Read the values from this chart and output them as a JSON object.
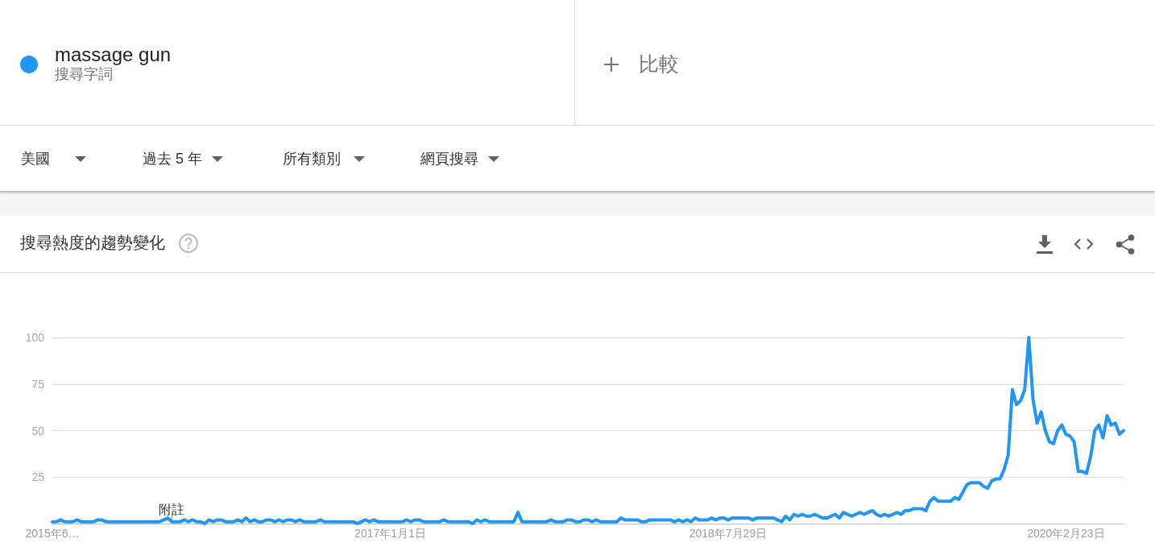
{
  "chart_data": {
    "type": "line",
    "title": "搜尋熱度的趨勢變化",
    "x": [
      "2015-06-07",
      "2015-06-14",
      "2015-06-21",
      "2015-06-28",
      "2015-07-12",
      "2015-07-19",
      "2015-07-26",
      "2015-08-16",
      "2015-08-23",
      "2015-08-30",
      "2015-09-06",
      "2015-12-06",
      "2015-12-13",
      "2015-12-20",
      "2015-12-27",
      "2016-01-10",
      "2016-01-17",
      "2016-01-24",
      "2016-01-31",
      "2016-02-07",
      "2016-02-14",
      "2016-02-21",
      "2016-02-28",
      "2016-03-06",
      "2016-03-13",
      "2016-03-20",
      "2016-03-27",
      "2016-04-10",
      "2016-04-17",
      "2016-04-24",
      "2016-05-01",
      "2016-05-08",
      "2016-05-15",
      "2016-05-22",
      "2016-05-29",
      "2016-06-05",
      "2016-06-12",
      "2016-06-19",
      "2016-06-26",
      "2016-07-03",
      "2016-07-10",
      "2016-07-17",
      "2016-07-24",
      "2016-07-31",
      "2016-08-07",
      "2016-08-28",
      "2016-09-04",
      "2016-09-11",
      "2016-10-30",
      "2016-11-06",
      "2016-11-13",
      "2016-11-20",
      "2016-11-27",
      "2016-12-04",
      "2016-12-11",
      "2017-01-22",
      "2017-01-29",
      "2017-02-05",
      "2017-02-12",
      "2017-02-19",
      "2017-02-26",
      "2017-03-26",
      "2017-04-02",
      "2017-04-09",
      "2017-05-14",
      "2017-05-21",
      "2017-05-28",
      "2017-06-04",
      "2017-06-11",
      "2017-06-18",
      "2017-07-30",
      "2017-08-06",
      "2017-08-13",
      "2017-09-24",
      "2017-10-01",
      "2017-10-08",
      "2017-10-22",
      "2017-10-29",
      "2017-11-05",
      "2017-11-12",
      "2017-11-19",
      "2017-11-26",
      "2017-12-03",
      "2017-12-10",
      "2017-12-17",
      "2017-12-24",
      "2018-01-21",
      "2018-01-28",
      "2018-02-04",
      "2018-02-25",
      "2018-03-04",
      "2018-03-11",
      "2018-03-18",
      "2018-04-22",
      "2018-04-29",
      "2018-05-06",
      "2018-05-13",
      "2018-05-20",
      "2018-05-27",
      "2018-06-03",
      "2018-06-10",
      "2018-06-24",
      "2018-07-01",
      "2018-07-08",
      "2018-07-15",
      "2018-07-22",
      "2018-07-29",
      "2018-08-05",
      "2018-09-02",
      "2018-09-09",
      "2018-09-16",
      "2018-10-14",
      "2018-10-21",
      "2018-10-28",
      "2018-11-04",
      "2018-11-11",
      "2018-11-18",
      "2018-11-25",
      "2018-12-02",
      "2018-12-09",
      "2018-12-16",
      "2018-12-23",
      "2018-12-30",
      "2019-01-06",
      "2019-01-13",
      "2019-01-20",
      "2019-01-27",
      "2019-02-03",
      "2019-02-10",
      "2019-02-17",
      "2019-02-24",
      "2019-03-03",
      "2019-03-10",
      "2019-03-17",
      "2019-03-24",
      "2019-03-31",
      "2019-04-07",
      "2019-04-14",
      "2019-04-21",
      "2019-04-28",
      "2019-05-05",
      "2019-05-12",
      "2019-05-19",
      "2019-05-26",
      "2019-06-02",
      "2019-06-09",
      "2019-06-23",
      "2019-06-30",
      "2019-07-07",
      "2019-07-14",
      "2019-07-21",
      "2019-08-11",
      "2019-08-18",
      "2019-08-25",
      "2019-09-01",
      "2019-09-08",
      "2019-09-15",
      "2019-09-29",
      "2019-10-06",
      "2019-10-13",
      "2019-10-20",
      "2019-10-27",
      "2019-11-03",
      "2019-11-10",
      "2019-11-17",
      "2019-11-24",
      "2019-12-01",
      "2019-12-08",
      "2019-12-15",
      "2019-12-22",
      "2019-12-29",
      "2020-01-05",
      "2020-01-12",
      "2020-01-19",
      "2020-01-26",
      "2020-02-02",
      "2020-02-09",
      "2020-02-16",
      "2020-02-23",
      "2020-03-01",
      "2020-03-08",
      "2020-03-15",
      "2020-03-22",
      "2020-03-29",
      "2020-04-05",
      "2020-04-12",
      "2020-04-19",
      "2020-04-26",
      "2020-05-03",
      "2020-05-10",
      "2020-05-17",
      "2020-05-24",
      "2020-05-31"
    ],
    "series": [
      {
        "name": "massage gun",
        "color": "#2196f3",
        "values": [
          1,
          1,
          2,
          1,
          1,
          2,
          1,
          1,
          2,
          2,
          1,
          1,
          2,
          3,
          1,
          1,
          2,
          1,
          2,
          1,
          1,
          0,
          2,
          1,
          2,
          2,
          1,
          1,
          2,
          1,
          3,
          1,
          2,
          1,
          1,
          2,
          2,
          1,
          2,
          1,
          2,
          2,
          1,
          2,
          1,
          1,
          2,
          1,
          1,
          0,
          1,
          2,
          1,
          2,
          1,
          1,
          2,
          1,
          2,
          2,
          1,
          1,
          2,
          1,
          1,
          0,
          2,
          1,
          2,
          1,
          1,
          6,
          1,
          1,
          2,
          1,
          1,
          2,
          2,
          1,
          1,
          2,
          2,
          1,
          2,
          1,
          1,
          3,
          2,
          2,
          1,
          1,
          2,
          2,
          1,
          2,
          1,
          2,
          1,
          3,
          2,
          2,
          3,
          2,
          3,
          3,
          2,
          3,
          3,
          2,
          3,
          3,
          2,
          1,
          4,
          2,
          5,
          4,
          5,
          4,
          4,
          5,
          4,
          3,
          3,
          4,
          5,
          3,
          6,
          5,
          4,
          5,
          6,
          5,
          6,
          7,
          5,
          4,
          5,
          4,
          5,
          6,
          5,
          7,
          7,
          8,
          8,
          7,
          12,
          14,
          12,
          12,
          14,
          13,
          17,
          21,
          22,
          22,
          20,
          19,
          23,
          24,
          24,
          29,
          37,
          72,
          64,
          66,
          72,
          100,
          67,
          54,
          60,
          50,
          44,
          43,
          50,
          53,
          48,
          47,
          44,
          28,
          28,
          27,
          36,
          50,
          53,
          46,
          58,
          53,
          54,
          48,
          50
        ]
      }
    ],
    "xlim": [
      "2015-06-07",
      "2020-05-31"
    ],
    "ylim": [
      0,
      100
    ],
    "xticks": [
      {
        "value": "2015-06-07",
        "label": "2015年6…"
      },
      {
        "value": "2017-01-01",
        "label": "2017年1月1日"
      },
      {
        "value": "2018-07-29",
        "label": "2018年7月29日"
      },
      {
        "value": "2020-02-23",
        "label": "2020年2月23日"
      }
    ],
    "yticks": [
      25,
      50,
      75,
      100
    ],
    "grid": "y",
    "legend": "top left",
    "marker": "none",
    "line_style": "solid",
    "annotations": [
      "搜尋字詞",
      "比較",
      "美國",
      "過去 5 年",
      "所有類別",
      "網頁搜尋",
      "附註"
    ]
  }
}
